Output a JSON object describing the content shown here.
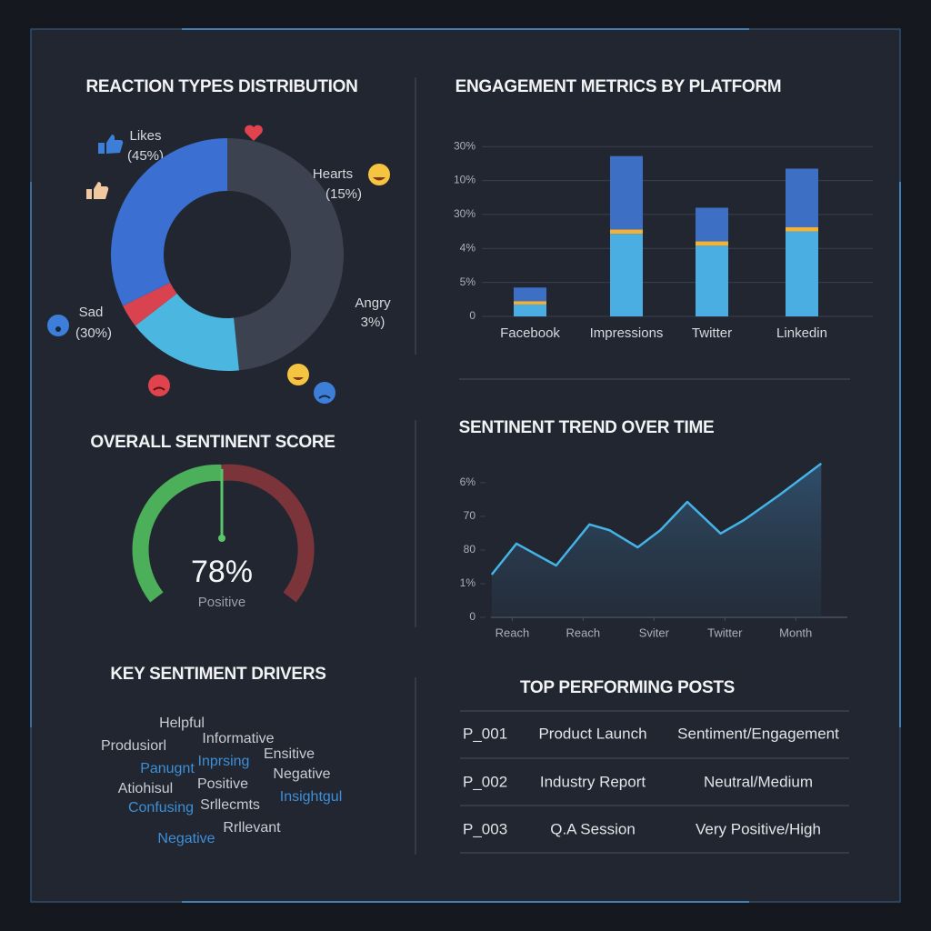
{
  "chart_data": [
    {
      "type": "pie",
      "title": "REACTION TYPES DISTRIBUTION",
      "categories": [
        "Likes",
        "Hearts",
        "Angry",
        "Sad"
      ],
      "values": [
        45,
        15,
        3,
        30
      ],
      "value_labels": [
        "(45%)",
        "(15%)",
        "3%)",
        "(30%)"
      ],
      "colors": [
        "#3c4250",
        "#4bb7e0",
        "#d9434f",
        "#3b6fd2"
      ]
    },
    {
      "type": "bar",
      "title": "ENGAGEMENT METRICS BY PLATFORM",
      "categories": [
        "Facebook",
        "Impressions",
        "Twitter",
        "Linkedin"
      ],
      "series": [
        {
          "color": "#4aaee2",
          "values": [
            0.35,
            2.43,
            2.08,
            2.5
          ]
        },
        {
          "color": "#f0b23a",
          "values": [
            0.1,
            0.13,
            0.13,
            0.13
          ]
        },
        {
          "color": "#3d6fc4",
          "values": [
            0.4,
            2.16,
            0.99,
            1.72
          ]
        }
      ],
      "ylim": [
        0,
        5.3
      ],
      "yticks": [
        {
          "value": 0,
          "label": "0"
        },
        {
          "value": 1,
          "label": "5%"
        },
        {
          "value": 2,
          "label": "4%"
        },
        {
          "value": 3,
          "label": "30%"
        },
        {
          "value": 4,
          "label": "10%"
        },
        {
          "value": 5,
          "label": "30%"
        }
      ],
      "grid": true
    },
    {
      "type": "line",
      "title": "SENTINENT TREND OVER TIME",
      "x": [
        0.71,
        1.06,
        1.62,
        2.09,
        2.37,
        2.77,
        3.09,
        3.47,
        3.94,
        4.27,
        4.76,
        5.36
      ],
      "values": [
        1.27,
        2.19,
        1.54,
        2.76,
        2.59,
        2.08,
        2.59,
        3.43,
        2.49,
        2.89,
        3.62,
        4.57
      ],
      "color": "#45b3e6",
      "xlim": [
        0.7,
        5.6
      ],
      "xticks": [
        {
          "value": 1,
          "label": "Reach"
        },
        {
          "value": 2,
          "label": "Reach"
        },
        {
          "value": 3,
          "label": "Sviter"
        },
        {
          "value": 4,
          "label": "Twitter"
        },
        {
          "value": 5,
          "label": "Month"
        }
      ],
      "ylim": [
        0,
        4.7
      ],
      "yticks": [
        {
          "value": 0,
          "label": "0"
        },
        {
          "value": 1,
          "label": "1%"
        },
        {
          "value": 2,
          "label": "80"
        },
        {
          "value": 3,
          "label": "70"
        },
        {
          "value": 4,
          "label": "6%"
        }
      ]
    }
  ],
  "gauge": {
    "title": "OVERALL SENTINENT SCORE",
    "value_label": "78%",
    "caption": "Positive"
  },
  "drivers": {
    "title": "KEY SENTIMENT DRIVERS",
    "words": [
      {
        "text": "Helpful",
        "color": "#c9ccd2"
      },
      {
        "text": "Informative",
        "color": "#c9ccd2"
      },
      {
        "text": "Produsiorl",
        "color": "#c9ccd2"
      },
      {
        "text": "Ensitive",
        "color": "#c9ccd2"
      },
      {
        "text": "Panugnt",
        "color": "#3d8fd8"
      },
      {
        "text": "Inprsing",
        "color": "#3d8fd8"
      },
      {
        "text": "Negative",
        "color": "#c9ccd2"
      },
      {
        "text": "Atiohisul",
        "color": "#c9ccd2"
      },
      {
        "text": "Positive",
        "color": "#c9ccd2"
      },
      {
        "text": "Insightgul",
        "color": "#3d8fd8"
      },
      {
        "text": "Confusing",
        "color": "#3d8fd8"
      },
      {
        "text": "Srllecmts",
        "color": "#c9ccd2"
      },
      {
        "text": "Rrllevant",
        "color": "#c9ccd2"
      },
      {
        "text": "Negative",
        "color": "#3d8fd8"
      }
    ]
  },
  "posts": {
    "title": "TOP PERFORMING POSTS",
    "rows": [
      [
        "P_001",
        "Product Launch",
        "Sentiment/Engagement"
      ],
      [
        "P_002",
        "Industry Report",
        "Neutral/Medium"
      ],
      [
        "P_003",
        "Q.A Session",
        "Very Positive/High"
      ]
    ]
  }
}
